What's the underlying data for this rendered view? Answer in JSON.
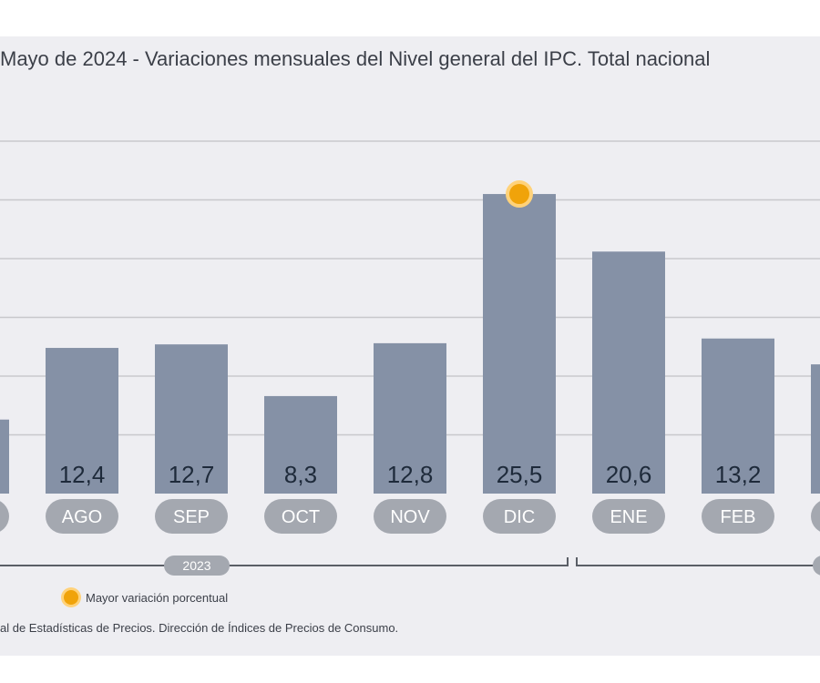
{
  "title": "Mayo de 2024 - Variaciones mensuales del Nivel general del IPC. Total nacional",
  "legend": {
    "label": "Mayor variación porcentual",
    "marker_color": "#f0a30a"
  },
  "source": "al de Estadísticas de Precios. Dirección de Índices de Precios de Consumo.",
  "colors": {
    "bar": "#8591a6",
    "grid": "#c8c8cc",
    "pill": "#a4a8b0",
    "value_text": "#1e2a3a"
  },
  "chart_data": {
    "type": "bar",
    "categories": [
      "",
      "AGO",
      "SEP",
      "OCT",
      "NOV",
      "DIC",
      "ENE",
      "FEB",
      ""
    ],
    "values": [
      6.3,
      12.4,
      12.7,
      8.3,
      12.8,
      25.5,
      20.6,
      13.2,
      11.0
    ],
    "labels": [
      "",
      "12,4",
      "12,7",
      "8,3",
      "12,8",
      "25,5",
      "20,6",
      "13,2",
      ""
    ],
    "highlight_index": 5,
    "year_groups": [
      {
        "label": "2023"
      },
      {
        "label": ""
      }
    ],
    "ylim": [
      0,
      30
    ],
    "grid": true,
    "legend_position": "bottom-left"
  }
}
